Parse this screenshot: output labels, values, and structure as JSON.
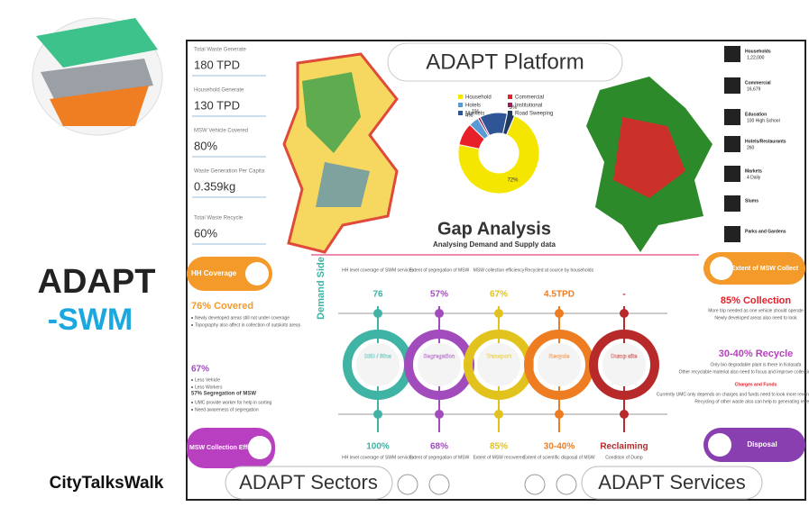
{
  "brand": {
    "name": "ADAPT",
    "suffix": "-SWM",
    "footer": "CityTalksWalk"
  },
  "header": {
    "title": "ADAPT Platform"
  },
  "metrics": [
    {
      "label": "Total Waste Generate",
      "value": "180 TPD"
    },
    {
      "label": "Household Generate",
      "value": "130 TPD"
    },
    {
      "label": "MSW Vehicle Covered",
      "value": "80%"
    },
    {
      "label": "Waste Generation Per Capita",
      "value": "0.359kg"
    },
    {
      "label": "Total Waste Recycle",
      "value": "60%"
    }
  ],
  "chart_data": {
    "type": "donut",
    "categories": [
      "Household",
      "Commercial",
      "Hotels",
      "Institutional",
      "Markets",
      "Road Sweeping"
    ],
    "values": [
      72,
      9,
      4,
      1,
      11,
      3
    ],
    "value_labels": [
      "72%",
      null,
      "4%",
      "1%",
      null,
      "3%"
    ],
    "colors": [
      "#f5e600",
      "#e8202a",
      "#5a9bd5",
      "#9b1d5a",
      "#2f5597",
      "#1f3864"
    ]
  },
  "gap_analysis": {
    "title": "Gap Analysis",
    "subtitle": "Analysing Demand and Supply data",
    "demand_label": "Demand Side"
  },
  "stages": [
    {
      "name": "D2D / Bins",
      "color": "#3fb3a4",
      "demand_label": "HH level coverage of SWM services",
      "demand_value": "76",
      "supply_value": "100%",
      "supply_label": "HH level coverage of SWM services"
    },
    {
      "name": "Segregation",
      "color": "#a24bbd",
      "demand_label": "Extent of segregation of MSW",
      "demand_value": "57%",
      "supply_value": "68%",
      "supply_label": "Extent of segregation of MSW"
    },
    {
      "name": "Transport",
      "color": "#e2c21c",
      "demand_label": "MSW collection efficiency",
      "demand_value": "67%",
      "supply_value": "85%",
      "supply_label": "Extent of MSW recovered"
    },
    {
      "name": "Recycle",
      "color": "#ee7d22",
      "demand_label": "Recycled at source by households",
      "demand_value": "4.5TPD",
      "supply_value": "30-40%",
      "supply_label": "Extent of scientific disposal of MSW"
    },
    {
      "name": "Dump site",
      "color": "#b82a2a",
      "demand_label": "",
      "demand_value": "-",
      "supply_value": "Reclaiming",
      "supply_label": "Condition of Dump"
    }
  ],
  "left_panel": {
    "hh_coverage": "HH Coverage",
    "covered": "76% Covered",
    "covered_notes": [
      "Newly developed areas still not under coverage",
      "Topography also affect in collection of outskirts areas"
    ],
    "efficiency": "67%",
    "efficiency_notes": [
      "Less Vehicle",
      "Less Workers"
    ],
    "segregation": "57% Segregation of MSW",
    "segregation_notes": [
      "UMC provide worker for help in sorting",
      "Need awareness of segregation"
    ],
    "collection": "MSW Collection Efficiency"
  },
  "right_panel": {
    "extent": "Extent of MSW Collect",
    "collection": "85% Collection",
    "collection_notes": [
      "More trip needed as one vehicle should operate",
      "Newly developed areas also need to look"
    ],
    "recycle": "30-40% Recycle",
    "recycle_notes": [
      "Only bio degradable plant is there in Kolasafa",
      "Other recyclable material also need to focus and improve collection efficiency"
    ],
    "charges": "Charges and Funds",
    "charges_notes": [
      "Currently UMC only depends on charges and funds need to look more revenue generating methods",
      "Recycling of other waste also can help to generating revenue"
    ],
    "disposal": "Disposal"
  },
  "sectors": [
    {
      "name": "Households",
      "detail": "1,22,000"
    },
    {
      "name": "Commercial",
      "detail": "16,679"
    },
    {
      "name": "Education",
      "detail": "100 High School"
    },
    {
      "name": "Hotels/Restaurants",
      "detail": "260"
    },
    {
      "name": "Markets",
      "detail": "4 Daily"
    },
    {
      "name": "Slums",
      "detail": ""
    },
    {
      "name": "Parks and Gardens",
      "detail": ""
    }
  ],
  "footer": {
    "sectors": "ADAPT Sectors",
    "services": "ADAPT Services"
  }
}
